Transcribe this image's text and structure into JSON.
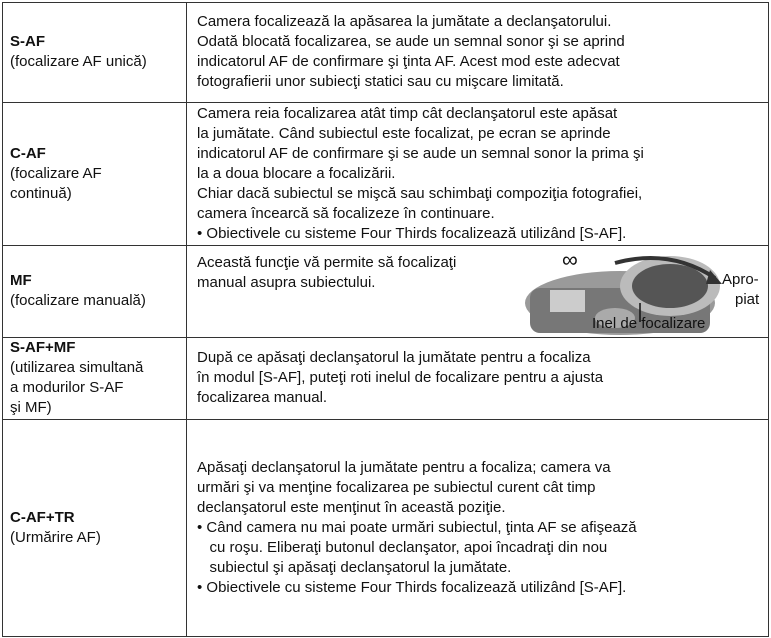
{
  "table": {
    "rows": [
      {
        "mode": "S-AF",
        "mode_desc": [
          "(focalizare AF unică)"
        ],
        "text": [
          "Camera focalizează la apăsarea la jumătate a declanşatorului.",
          "Odată blocată focalizarea, se aude un semnal sonor şi se aprind",
          "indicatorul AF de confirmare şi ţinta AF. Acest mod este adecvat",
          "fotografierii unor subiecţi statici sau cu mişcare limitată."
        ]
      },
      {
        "mode": "C-AF",
        "mode_desc": [
          "(focalizare AF",
          "continuă)"
        ],
        "text": [
          "Camera reia focalizarea atât timp cât declanşatorul este apăsat",
          "la jumătate. Când subiectul este focalizat, pe ecran se aprinde",
          "indicatorul AF de confirmare şi se aude un semnal sonor la prima şi",
          "la a doua blocare a focalizării.",
          "Chiar dacă subiectul se mişcă sau schimbaţi compoziţia fotografiei,",
          "camera încearcă să focalizeze în continuare.",
          "• Obiectivele cu sisteme Four Thirds focalizează utilizând [S-AF]."
        ]
      },
      {
        "mode": "MF",
        "mode_desc": [
          "(focalizare manuală)"
        ],
        "text": [
          "Această funcţie vă permite să focalizaţi",
          "manual asupra subiectului."
        ]
      },
      {
        "mode": "S-AF+MF",
        "mode_desc": [
          "(utilizarea simultană",
          "a modurilor S-AF",
          "şi MF)"
        ],
        "text": [
          "După ce apăsaţi declanşatorul la jumătate pentru a focaliza",
          "în modul [S-AF], puteţi roti inelul de focalizare pentru a ajusta",
          "focalizarea manual."
        ]
      },
      {
        "mode": "C-AF+TR",
        "mode_desc": [
          "(Urmărire AF)"
        ],
        "text": [
          "Apăsaţi declanşatorul la jumătate pentru a focaliza; camera va",
          "urmări şi va menţine focalizarea pe subiectul curent cât timp",
          "declanşatorul este menţinut în această poziţie.",
          "• Când camera nu mai poate urmări subiectul, ţinta AF se afişează",
          "   cu roşu. Eliberaţi butonul declanşator, apoi încadraţi din nou",
          "   subiectul şi apăsaţi declanşatorul la jumătate.",
          "• Obiectivele cu sisteme Four Thirds focalizează utilizând [S-AF]."
        ]
      }
    ]
  },
  "illustration": {
    "infinity": "∞",
    "near": [
      "Apro-",
      "piat"
    ],
    "ring": "Inel de focalizare"
  }
}
